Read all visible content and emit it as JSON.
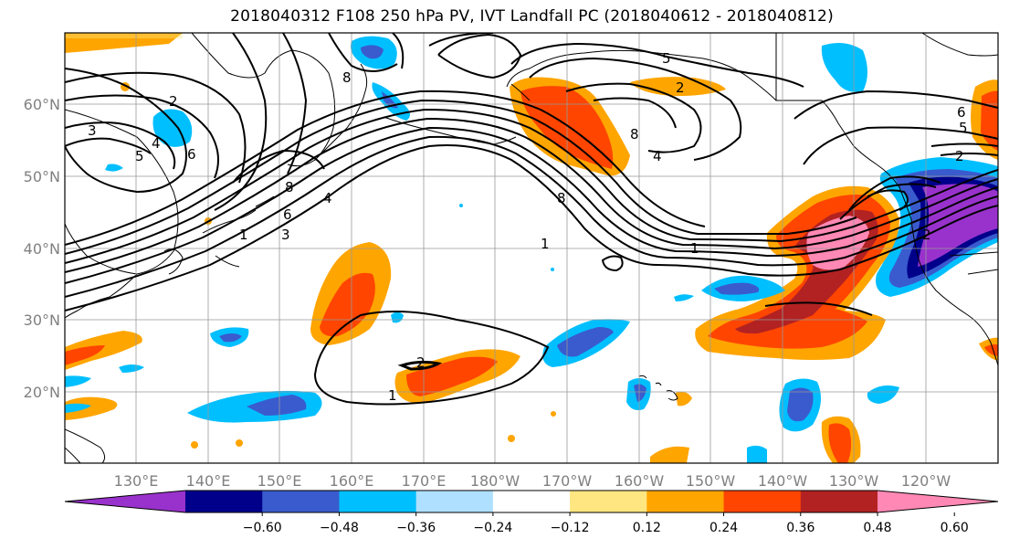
{
  "title": "2018040312 F108 250 hPa PV, IVT Landfall PC (2018040612 - 2018040812)",
  "latitude_labels": [
    "60°N",
    "50°N",
    "40°N",
    "30°N",
    "20°N"
  ],
  "longitude_labels": [
    "130°E",
    "140°E",
    "150°E",
    "160°E",
    "170°E",
    "180°W",
    "170°W",
    "160°W",
    "150°W",
    "140°W",
    "130°W",
    "120°W"
  ],
  "colorbar": {
    "colors": [
      "#9932CC",
      "#00008B",
      "#3A5BCD",
      "#00BFFF",
      "#B0E0FF",
      "#FFFFFF",
      "#FFE680",
      "#FFA500",
      "#FF4500",
      "#B22222",
      "#FF88B4"
    ],
    "tick_labels": [
      "−0.60",
      "−0.48",
      "−0.36",
      "−0.24",
      "−0.12",
      "0.12",
      "0.24",
      "0.36",
      "0.48",
      "0.60"
    ]
  },
  "contour_labels": [
    "2",
    "3",
    "4",
    "5",
    "6",
    "8",
    "8",
    "8",
    "5",
    "2",
    "4",
    "8",
    "1",
    "1",
    "2",
    "1",
    "3",
    "4",
    "6",
    "5",
    "6",
    "2",
    "2",
    "1"
  ]
}
